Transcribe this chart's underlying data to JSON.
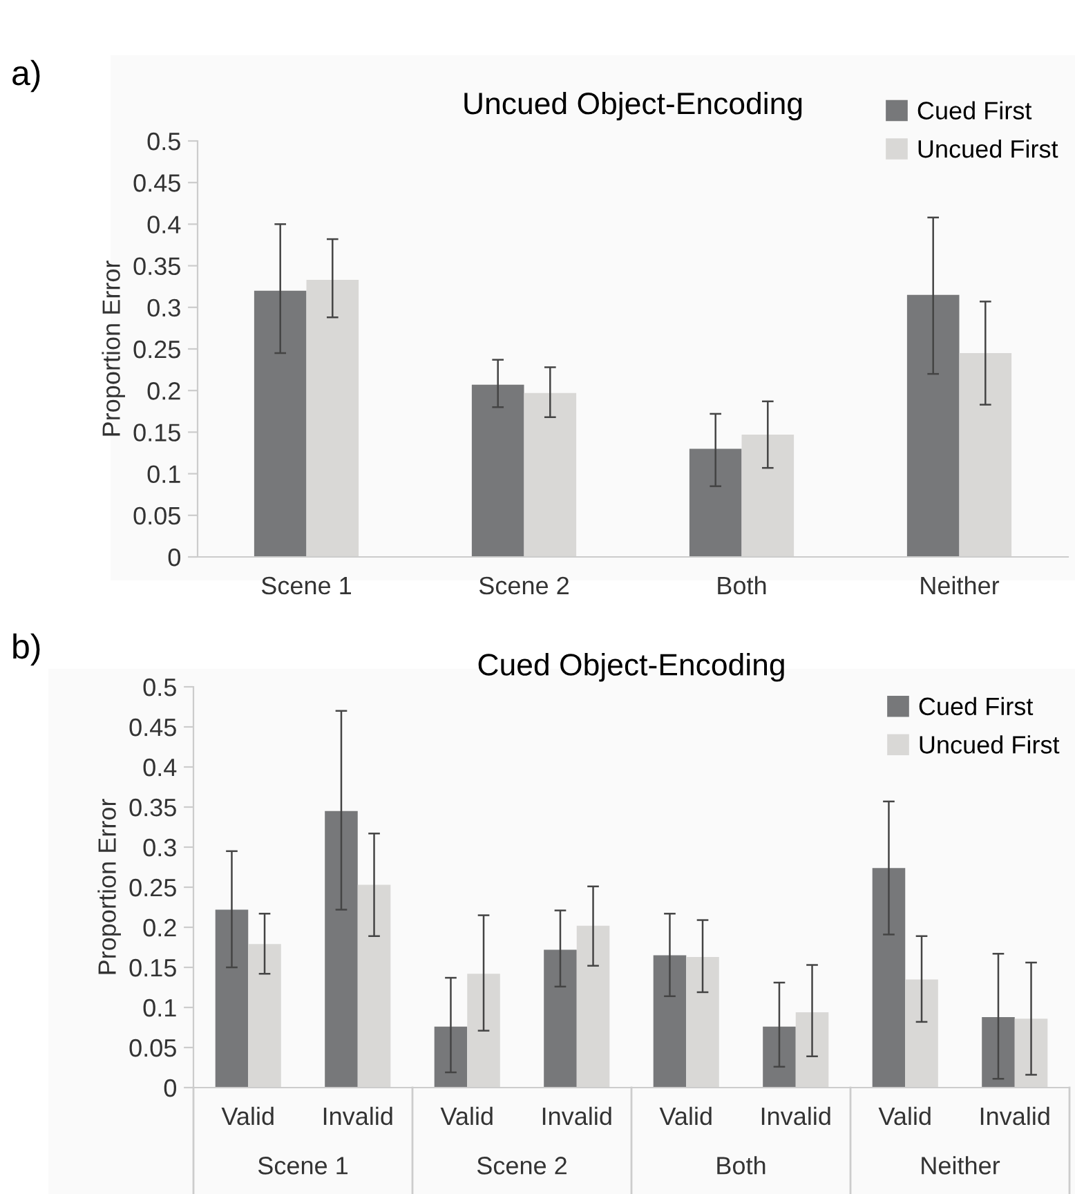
{
  "chart_data": [
    {
      "type": "bar",
      "title": "Uncued Object-Encoding",
      "ylabel": "Proportion Error",
      "annotations": [
        "a)"
      ],
      "categories": [
        "Scene 1",
        "Scene 2",
        "Both",
        "Neither"
      ],
      "series": [
        {
          "name": "Cued First",
          "color": "#77787a",
          "values": [
            0.32,
            0.207,
            0.13,
            0.315
          ],
          "errors": [
            [
              0.245,
              0.4
            ],
            [
              0.18,
              0.237
            ],
            [
              0.085,
              0.172
            ],
            [
              0.22,
              0.408
            ]
          ]
        },
        {
          "name": "Uncued First",
          "color": "#d9d8d6",
          "values": [
            0.333,
            0.197,
            0.147,
            0.245
          ],
          "errors": [
            [
              0.288,
              0.382
            ],
            [
              0.168,
              0.228
            ],
            [
              0.107,
              0.187
            ],
            [
              0.183,
              0.307
            ]
          ]
        }
      ],
      "ylim": [
        0,
        0.5
      ],
      "yticks": [
        0,
        0.05,
        0.1,
        0.15,
        0.2,
        0.25,
        0.3,
        0.35,
        0.4,
        0.45,
        0.5
      ],
      "legend": "top right"
    },
    {
      "type": "bar",
      "title": "Cued Object-Encoding",
      "ylabel": "Proportion Error",
      "annotations": [
        "b)",
        "Scene 1",
        "Scene 2",
        "Both",
        "Neither"
      ],
      "categories": [
        "Valid",
        "Invalid",
        "Valid",
        "Invalid",
        "Valid",
        "Invalid",
        "Valid",
        "Invalid"
      ],
      "series": [
        {
          "name": "Cued First",
          "color": "#77787a",
          "values": [
            0.222,
            0.345,
            0.076,
            0.172,
            0.165,
            0.076,
            0.274,
            0.088
          ],
          "errors": [
            [
              0.15,
              0.295
            ],
            [
              0.222,
              0.47
            ],
            [
              0.019,
              0.137
            ],
            [
              0.126,
              0.221
            ],
            [
              0.114,
              0.217
            ],
            [
              0.026,
              0.131
            ],
            [
              0.191,
              0.357
            ],
            [
              0.011,
              0.167
            ]
          ]
        },
        {
          "name": "Uncued First",
          "color": "#d9d8d6",
          "values": [
            0.179,
            0.253,
            0.142,
            0.202,
            0.163,
            0.094,
            0.135,
            0.086
          ],
          "errors": [
            [
              0.142,
              0.217
            ],
            [
              0.189,
              0.317
            ],
            [
              0.071,
              0.215
            ],
            [
              0.152,
              0.251
            ],
            [
              0.119,
              0.209
            ],
            [
              0.039,
              0.153
            ],
            [
              0.082,
              0.189
            ],
            [
              0.016,
              0.156
            ]
          ]
        }
      ],
      "ylim": [
        0,
        0.5
      ],
      "yticks": [
        0,
        0.05,
        0.1,
        0.15,
        0.2,
        0.25,
        0.3,
        0.35,
        0.4,
        0.45,
        0.5
      ],
      "legend": "top right"
    }
  ]
}
